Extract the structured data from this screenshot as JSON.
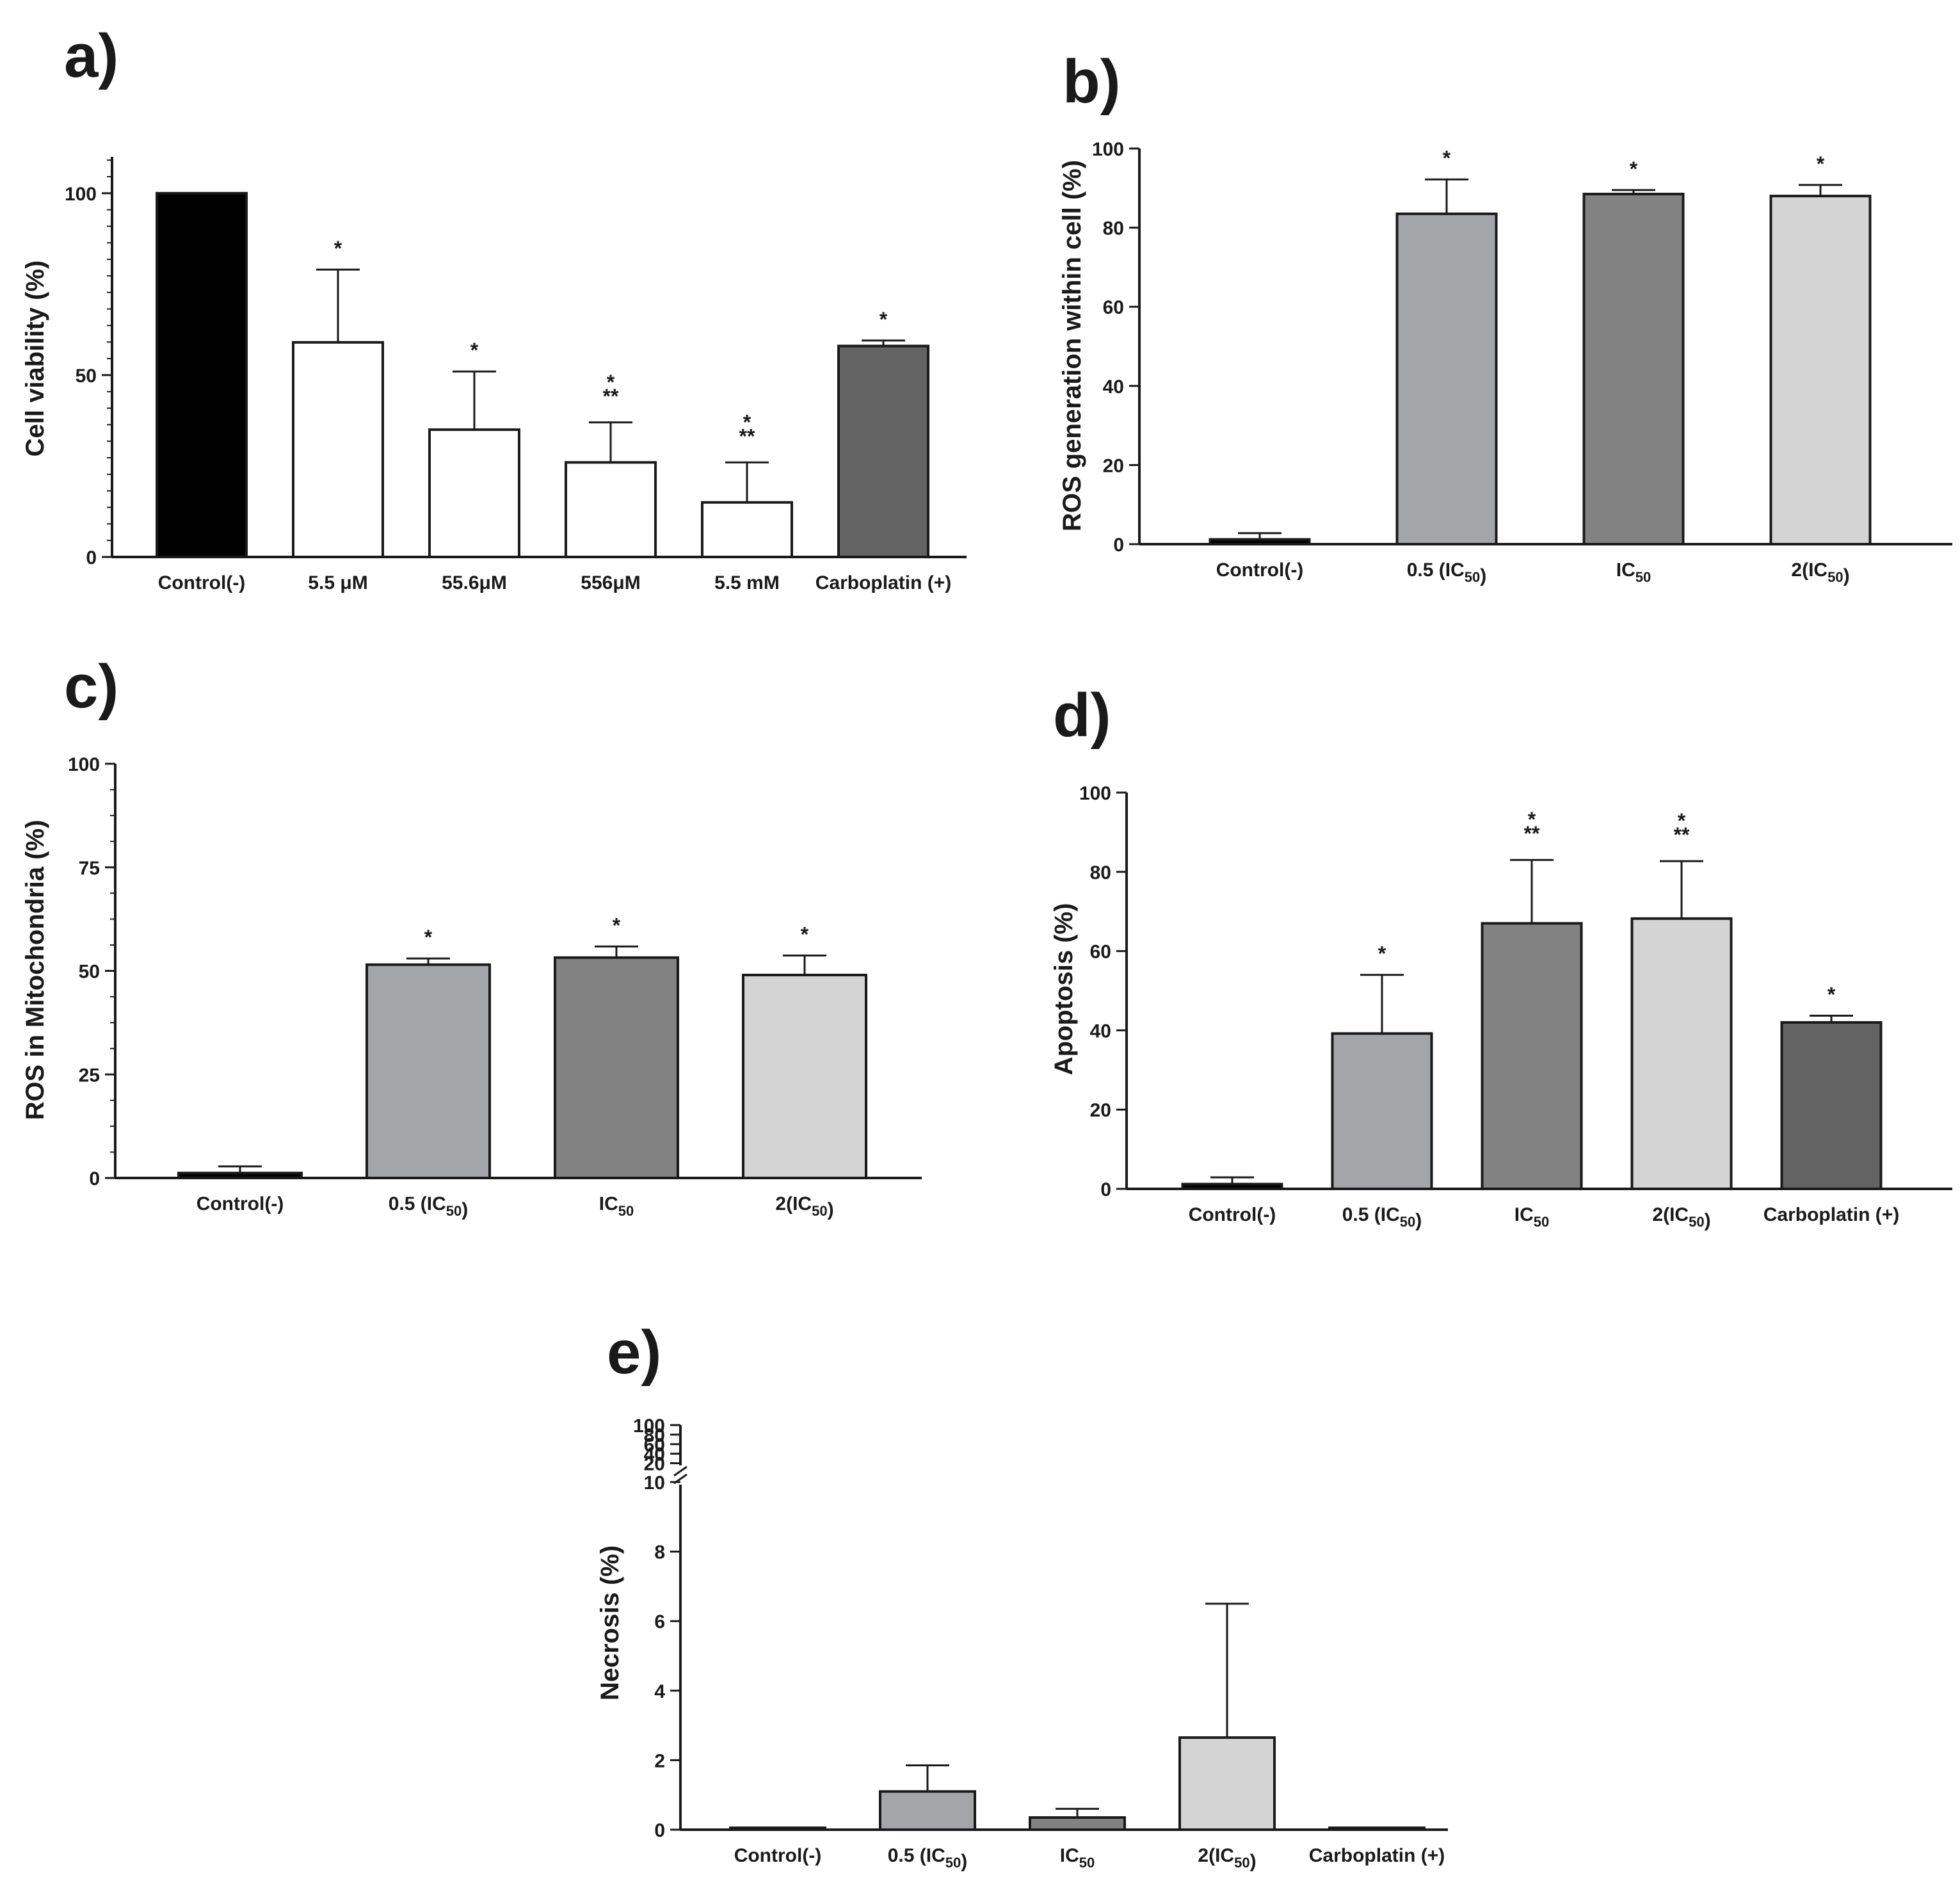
{
  "chart_data": [
    {
      "panel": "a)",
      "type": "bar",
      "ylabel": "Cell viability (%)",
      "ylim": [
        0,
        110
      ],
      "yticks": [
        0,
        50,
        100
      ],
      "categories": [
        "Control(-)",
        "5.5 μM",
        "55.6μM",
        "556μM",
        "5.5 mM",
        "Carboplatin (+)"
      ],
      "values": [
        100,
        59,
        35,
        26,
        15,
        58
      ],
      "errors": [
        0,
        20,
        16,
        11,
        11,
        1.5
      ],
      "colors": [
        "#000000",
        "#ffffff",
        "#ffffff",
        "#ffffff",
        "#ffffff",
        "#636363"
      ],
      "significance": [
        "",
        "*",
        "*",
        "*\n**",
        "*\n**",
        "*"
      ]
    },
    {
      "panel": "b)",
      "type": "bar",
      "ylabel": "ROS generation within cell (%)",
      "ylim": [
        0,
        100
      ],
      "yticks": [
        0,
        20,
        40,
        60,
        80,
        100
      ],
      "categories": [
        "Control(-)",
        "0.5 (IC50)",
        "IC50",
        "2(IC50)"
      ],
      "values": [
        1.2,
        83.5,
        88.5,
        88
      ],
      "errors": [
        1.6,
        8.7,
        1,
        2.8
      ],
      "colors": [
        "#000000",
        "#a4a5a8",
        "#828282",
        "#d4d4d4"
      ],
      "significance": [
        "",
        "*",
        "*",
        "*"
      ]
    },
    {
      "panel": "c)",
      "type": "bar",
      "ylabel": "ROS in Mitochondria (%)",
      "ylim": [
        0,
        100
      ],
      "yticks": [
        0,
        25,
        50,
        75,
        100
      ],
      "categories": [
        "Control(-)",
        "0.5 (IC50)",
        "IC50",
        "2(IC50)"
      ],
      "values": [
        1.2,
        51.5,
        53.2,
        49
      ],
      "errors": [
        1.6,
        1.5,
        2.7,
        4.7
      ],
      "colors": [
        "#000000",
        "#a4a5a8",
        "#828282",
        "#d4d4d4"
      ],
      "significance": [
        "",
        "*",
        "*",
        "*"
      ]
    },
    {
      "panel": "d)",
      "type": "bar",
      "ylabel": "Apoptosis (%)",
      "ylim": [
        0,
        100
      ],
      "yticks": [
        0,
        20,
        40,
        60,
        80,
        100
      ],
      "categories": [
        "Control(-)",
        "0.5 (IC50)",
        "IC50",
        "2(IC50)",
        "Carboplatin (+)"
      ],
      "values": [
        1.2,
        39.2,
        67,
        68.2,
        42
      ],
      "errors": [
        1.7,
        14.8,
        16,
        14.5,
        1.7
      ],
      "colors": [
        "#000000",
        "#a4a5a8",
        "#828282",
        "#d4d4d4",
        "#636363"
      ],
      "significance": [
        "",
        "*",
        "*\n**",
        "*\n**",
        "*"
      ]
    },
    {
      "panel": "e)",
      "type": "bar",
      "ylabel": "Necrosis (%)",
      "ylim": [
        0,
        100
      ],
      "axis_break_at": 10,
      "yticks_lower": [
        0,
        2,
        4,
        6,
        8,
        10
      ],
      "yticks_upper": [
        20,
        40,
        60,
        80,
        100
      ],
      "categories": [
        "Control(-)",
        "0.5 (IC50)",
        "IC50",
        "2(IC50)",
        "Carboplatin (+)"
      ],
      "values": [
        0.05,
        1.1,
        0.35,
        2.65,
        0.05
      ],
      "errors": [
        0,
        0.75,
        0.25,
        3.85,
        0
      ],
      "colors": [
        "#000000",
        "#a4a5a8",
        "#828282",
        "#d4d4d4",
        "#636363"
      ],
      "significance": [
        "",
        "",
        "",
        "",
        ""
      ]
    }
  ]
}
